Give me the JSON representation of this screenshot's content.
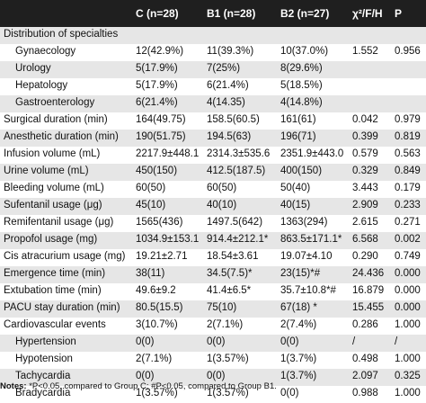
{
  "columns": [
    "C (n=28)",
    "B1 (n=28)",
    "B2 (n=27)",
    "χ²/F/H",
    "P"
  ],
  "rows": [
    {
      "label": "Distribution of specialties",
      "sub": false,
      "c": "",
      "b1": "",
      "b2": "",
      "stat": "",
      "p": ""
    },
    {
      "label": "Gynaecology",
      "sub": true,
      "c": "12(42.9%)",
      "b1": "11(39.3%)",
      "b2": "10(37.0%)",
      "stat": "1.552",
      "p": "0.956"
    },
    {
      "label": "Urology",
      "sub": true,
      "c": "5(17.9%)",
      "b1": "7(25%)",
      "b2": "8(29.6%)",
      "stat": "",
      "p": ""
    },
    {
      "label": "Hepatology",
      "sub": true,
      "c": "5(17.9%)",
      "b1": "6(21.4%)",
      "b2": "5(18.5%)",
      "stat": "",
      "p": ""
    },
    {
      "label": "Gastroenterology",
      "sub": true,
      "c": "6(21.4%)",
      "b1": "4(14.35)",
      "b2": "4(14.8%)",
      "stat": "",
      "p": ""
    },
    {
      "label": "Surgical duration (min)",
      "sub": false,
      "c": "164(49.75)",
      "b1": "158.5(60.5)",
      "b2": "161(61)",
      "stat": "0.042",
      "p": "0.979"
    },
    {
      "label": "Anesthetic duration (min)",
      "sub": false,
      "c": "190(51.75)",
      "b1": "194.5(63)",
      "b2": "196(71)",
      "stat": "0.399",
      "p": "0.819"
    },
    {
      "label": "Infusion volume (mL)",
      "sub": false,
      "c": "2217.9±448.1",
      "b1": "2314.3±535.6",
      "b2": "2351.9±443.0",
      "stat": "0.579",
      "p": "0.563"
    },
    {
      "label": "Urine volume (mL)",
      "sub": false,
      "c": "450(150)",
      "b1": "412.5(187.5)",
      "b2": "400(150)",
      "stat": "0.329",
      "p": "0.849"
    },
    {
      "label": "Bleeding volume (mL)",
      "sub": false,
      "c": "60(50)",
      "b1": "60(50)",
      "b2": "50(40)",
      "stat": "3.443",
      "p": "0.179"
    },
    {
      "label": "Sufentanil usage (μg)",
      "sub": false,
      "c": "45(10)",
      "b1": "40(10)",
      "b2": "40(15)",
      "stat": "2.909",
      "p": "0.233"
    },
    {
      "label": "Remifentanil usage (μg)",
      "sub": false,
      "c": "1565(436)",
      "b1": "1497.5(642)",
      "b2": "1363(294)",
      "stat": "2.615",
      "p": "0.271"
    },
    {
      "label": "Propofol usage (mg)",
      "sub": false,
      "c": "1034.9±153.1",
      "b1": "914.4±212.1*",
      "b2": "863.5±171.1*",
      "stat": "6.568",
      "p": "0.002"
    },
    {
      "label": "Cis atracurium usage (mg)",
      "sub": false,
      "c": "19.21±2.71",
      "b1": "18.54±3.61",
      "b2": "19.07±4.10",
      "stat": "0.290",
      "p": "0.749"
    },
    {
      "label": "Emergence time (min)",
      "sub": false,
      "c": "38(11)",
      "b1": "34.5(7.5)*",
      "b2": "23(15)*#",
      "stat": "24.436",
      "p": "0.000"
    },
    {
      "label": "Extubation time (min)",
      "sub": false,
      "c": "49.6±9.2",
      "b1": "41.4±6.5*",
      "b2": "35.7±10.8*#",
      "stat": "16.879",
      "p": "0.000"
    },
    {
      "label": "PACU stay duration (min)",
      "sub": false,
      "c": "80.5(15.5)",
      "b1": "75(10)",
      "b2": "67(18) *",
      "stat": "15.455",
      "p": "0.000"
    },
    {
      "label": "Cardiovascular events",
      "sub": false,
      "c": "3(10.7%)",
      "b1": "2(7.1%)",
      "b2": "2(7.4%)",
      "stat": "0.286",
      "p": "1.000"
    },
    {
      "label": "Hypertension",
      "sub": true,
      "c": "0(0)",
      "b1": "0(0)",
      "b2": "0(0)",
      "stat": "/",
      "p": "/"
    },
    {
      "label": "Hypotension",
      "sub": true,
      "c": "2(7.1%)",
      "b1": "1(3.57%)",
      "b2": "1(3.7%)",
      "stat": "0.498",
      "p": "1.000"
    },
    {
      "label": "Tachycardia",
      "sub": true,
      "c": "0(0)",
      "b1": "0(0)",
      "b2": "1(3.7%)",
      "stat": "2.097",
      "p": "0.325"
    },
    {
      "label": "Bradycardia",
      "sub": true,
      "c": "1(3.57%)",
      "b1": "1(3.57%)",
      "b2": "0(0)",
      "stat": "0.988",
      "p": "1.000"
    }
  ],
  "notes": {
    "label": "Notes:",
    "text": "*P<0.05, compared to Group C; #P<0.05, compared to Group B1."
  }
}
